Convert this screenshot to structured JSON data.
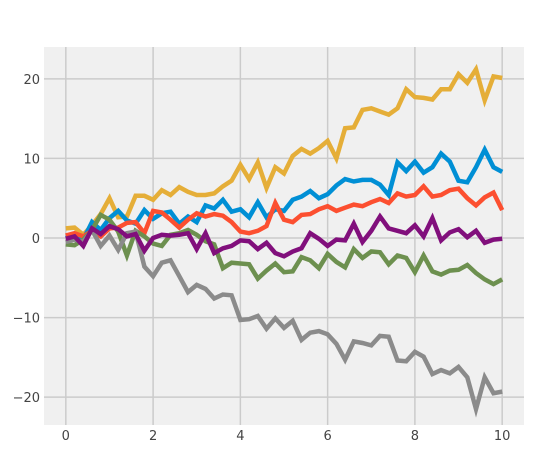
{
  "chart_data": {
    "type": "line",
    "title": "",
    "xlabel": "",
    "ylabel": "",
    "xlim": [
      -0.5,
      10.5
    ],
    "ylim": [
      -23.5,
      24
    ],
    "xticks": [
      0,
      2,
      4,
      6,
      8,
      10
    ],
    "yticks": [
      -20,
      -10,
      0,
      10,
      20
    ],
    "xtick_labels": [
      "0",
      "2",
      "4",
      "6",
      "8",
      "10"
    ],
    "ytick_labels": [
      "−20",
      "−10",
      "0",
      "10",
      "20"
    ],
    "grid": true,
    "legend": false,
    "colors": {
      "plot_background": "#f0f0f0",
      "grid": "#cbcbcb"
    },
    "x": [
      0,
      0.2,
      0.4,
      0.6,
      0.8,
      1.0,
      1.2,
      1.4,
      1.6,
      1.8,
      2.0,
      2.2,
      2.4,
      2.6,
      2.8,
      3.0,
      3.2,
      3.4,
      3.6,
      3.8,
      4.0,
      4.2,
      4.4,
      4.6,
      4.8,
      5.0,
      5.2,
      5.4,
      5.6,
      5.8,
      6.0,
      6.2,
      6.4,
      6.6,
      6.8,
      7.0,
      7.2,
      7.4,
      7.6,
      7.8,
      8.0,
      8.2,
      8.4,
      8.6,
      8.8,
      9.0,
      9.2,
      9.4,
      9.6,
      9.8,
      10.0
    ],
    "series": [
      {
        "color": "#e5ae38",
        "values": [
          1.2,
          1.3,
          0.4,
          1.6,
          3.0,
          5.0,
          2.6,
          2.7,
          5.3,
          5.3,
          4.8,
          6.0,
          5.4,
          6.4,
          5.8,
          5.4,
          5.4,
          5.6,
          6.5,
          7.2,
          9.2,
          7.4,
          9.5,
          6.3,
          8.9,
          8.1,
          10.3,
          11.2,
          10.6,
          11.3,
          12.2,
          10.0,
          13.8,
          13.9,
          16.1,
          16.3,
          15.9,
          15.5,
          16.3,
          18.7,
          17.7,
          17.6,
          17.4,
          18.7,
          18.7,
          20.6,
          19.5,
          21.2,
          17.3,
          20.3,
          20.1
        ]
      },
      {
        "color": "#008fd5",
        "values": [
          0.0,
          0.3,
          -0.2,
          2.0,
          1.0,
          2.5,
          3.4,
          2.2,
          1.8,
          3.5,
          2.4,
          3.1,
          3.3,
          1.8,
          2.7,
          2.0,
          4.1,
          3.7,
          4.8,
          3.3,
          3.6,
          2.6,
          4.5,
          2.6,
          3.6,
          3.4,
          4.8,
          5.2,
          5.9,
          5.0,
          5.5,
          6.6,
          7.4,
          7.1,
          7.3,
          7.3,
          6.7,
          5.4,
          9.5,
          8.4,
          9.6,
          8.2,
          8.9,
          10.6,
          9.6,
          7.2,
          7.0,
          8.9,
          11.1,
          8.9,
          8.3
        ]
      },
      {
        "color": "#fc4f30",
        "values": [
          0.3,
          0.6,
          0.2,
          0.9,
          0.2,
          1.2,
          1.3,
          1.9,
          2.0,
          0.6,
          3.4,
          3.2,
          2.3,
          1.3,
          2.3,
          3.1,
          2.7,
          3.0,
          2.8,
          2.0,
          0.8,
          0.6,
          0.9,
          1.5,
          4.4,
          2.3,
          2.0,
          2.9,
          3.0,
          3.6,
          4.0,
          3.4,
          3.8,
          4.2,
          4.0,
          4.5,
          4.9,
          4.4,
          5.6,
          5.2,
          5.4,
          6.5,
          5.2,
          5.4,
          6.0,
          6.2,
          5.0,
          4.1,
          5.1,
          5.7,
          3.5
        ]
      },
      {
        "color": "#6d904f",
        "values": [
          -0.8,
          -0.9,
          -0.2,
          1.0,
          2.9,
          2.3,
          0.8,
          -2.2,
          0.9,
          0.2,
          -0.7,
          -1.0,
          0.4,
          0.6,
          1.0,
          0.4,
          -0.4,
          -0.8,
          -3.8,
          -3.1,
          -3.2,
          -3.3,
          -5.1,
          -4.1,
          -3.2,
          -4.3,
          -4.2,
          -2.4,
          -2.8,
          -3.8,
          -2.0,
          -3.0,
          -3.7,
          -1.4,
          -2.5,
          -1.7,
          -1.8,
          -3.3,
          -2.2,
          -2.5,
          -4.3,
          -2.2,
          -4.2,
          -4.6,
          -4.1,
          -4.0,
          -3.4,
          -4.4,
          -5.2,
          -5.8,
          -5.2
        ]
      },
      {
        "color": "#8b8b8b",
        "values": [
          -0.5,
          -0.2,
          -0.5,
          1.0,
          -1.0,
          0.3,
          -1.5,
          0.6,
          0.8,
          -3.6,
          -4.8,
          -3.1,
          -2.8,
          -4.8,
          -6.8,
          -5.9,
          -6.4,
          -7.6,
          -7.1,
          -7.2,
          -10.3,
          -10.2,
          -9.8,
          -11.4,
          -10.1,
          -11.3,
          -10.4,
          -12.8,
          -11.9,
          -11.7,
          -12.1,
          -13.3,
          -15.3,
          -13.0,
          -13.2,
          -13.5,
          -12.3,
          -12.4,
          -15.4,
          -15.5,
          -14.3,
          -14.9,
          -17.1,
          -16.6,
          -17.0,
          -16.2,
          -17.5,
          -21.5,
          -17.5,
          -19.5,
          -19.3
        ]
      },
      {
        "color": "#810f7c",
        "values": [
          -0.1,
          0.2,
          -1.0,
          1.2,
          0.5,
          1.5,
          1.1,
          0.2,
          0.5,
          -1.6,
          0.0,
          0.4,
          0.3,
          0.4,
          0.6,
          -1.4,
          0.6,
          -1.9,
          -1.3,
          -1.0,
          -0.3,
          -0.4,
          -1.4,
          -0.6,
          -1.9,
          -2.3,
          -1.7,
          -1.3,
          0.6,
          -0.1,
          -1.0,
          -0.2,
          -0.3,
          1.8,
          -0.5,
          0.9,
          2.7,
          1.2,
          0.9,
          0.6,
          1.6,
          0.2,
          2.5,
          -0.3,
          0.7,
          1.1,
          0.1,
          0.9,
          -0.6,
          -0.2,
          -0.1
        ]
      }
    ]
  }
}
